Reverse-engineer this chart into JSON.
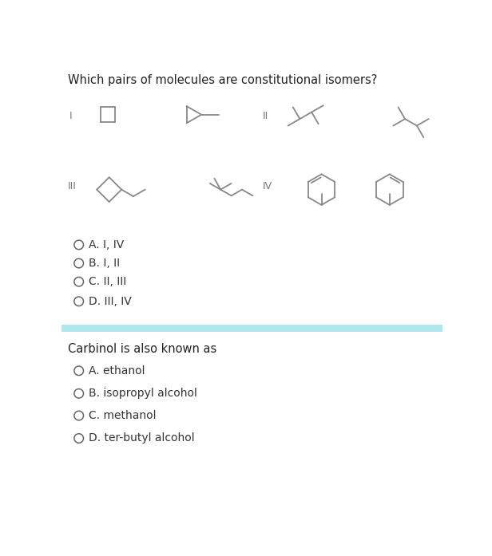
{
  "title": "Which pairs of molecules are constitutional isomers?",
  "title_fontsize": 10.5,
  "title_color": "#222222",
  "bg_color": "#ffffff",
  "separator_color": "#aee8ee",
  "question2": "Carbinol is also known as",
  "question2_fontsize": 10.5,
  "options1": [
    "A. I, IV",
    "B. I, II",
    "C. II, III",
    "D. III, IV"
  ],
  "options2": [
    "A. ethanol",
    "B. isopropyl alcohol",
    "C. methanol",
    "D. ter-butyl alcohol"
  ],
  "mol_color": "#888888",
  "label_color": "#777777",
  "option_color": "#333333",
  "circle_color": "#666666"
}
